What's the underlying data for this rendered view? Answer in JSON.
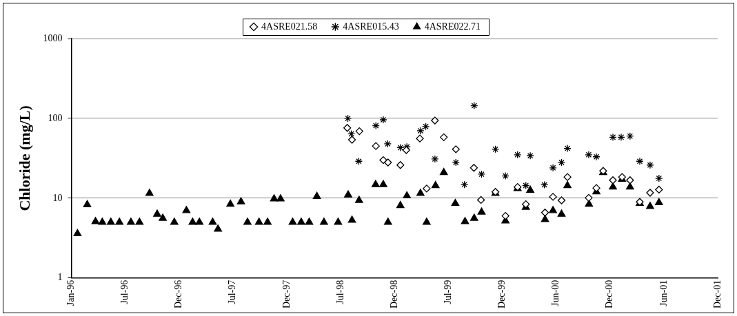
{
  "chart_data": {
    "type": "scatter",
    "ylabel": "Chloride (mg/L)",
    "log": "y",
    "grid": "y",
    "legend": "top",
    "ylim": [
      1,
      1000
    ],
    "yticks": [
      1,
      10,
      100,
      1000
    ],
    "xlim": [
      "1996-01-01",
      "2001-12-30"
    ],
    "xticks": [
      {
        "value": "1996-01-01",
        "label": "Jan-96"
      },
      {
        "value": "1996-07-01T12:00",
        "label": "Jul-96"
      },
      {
        "value": "1996-12-31",
        "label": "Dec-96"
      },
      {
        "value": "1997-07-01T12:00",
        "label": "Jul-97"
      },
      {
        "value": "1997-12-31",
        "label": "Dec-97"
      },
      {
        "value": "1998-07-01T12:00",
        "label": "Jul-98"
      },
      {
        "value": "1998-12-31",
        "label": "Dec-98"
      },
      {
        "value": "1999-07-01T12:00",
        "label": "Jul-99"
      },
      {
        "value": "1999-12-31",
        "label": "Dec-99"
      },
      {
        "value": "2000-06-30T12:00",
        "label": "Jun-00"
      },
      {
        "value": "2000-12-30",
        "label": "Dec-00"
      },
      {
        "value": "2001-06-30T12:00",
        "label": "Jun-01"
      },
      {
        "value": "2001-12-30",
        "label": "Dec-01"
      }
    ],
    "series": [
      {
        "name": "4ASRE021.58",
        "color": "#000000",
        "marker": "diamond",
        "x": [
          "1998-07-24",
          "1998-08-09",
          "1998-09-03",
          "1998-10-29",
          "1998-11-23",
          "1998-12-09",
          "1999-01-20",
          "1999-02-09",
          "1999-03-27",
          "1999-04-19",
          "1999-05-17",
          "1999-06-16",
          "1999-07-27",
          "1999-09-26",
          "1999-10-20",
          "1999-12-08",
          "2000-01-11",
          "2000-02-21",
          "2000-03-20",
          "2000-05-24",
          "2000-06-20",
          "2000-07-19",
          "2000-08-08",
          "2000-10-19",
          "2000-11-14",
          "2000-12-07",
          "2001-01-09",
          "2001-02-09",
          "2001-03-08",
          "2001-04-10",
          "2001-05-15",
          "2001-06-14"
        ],
        "values": [
          76,
          54,
          69,
          45,
          30,
          28,
          26,
          40,
          56,
          13.2,
          94,
          58,
          41,
          24,
          9.5,
          12,
          6,
          13.8,
          8.4,
          6.6,
          10.4,
          9.4,
          18.4,
          10.1,
          13.4,
          22,
          16.8,
          18.4,
          16.8,
          9,
          11.7,
          12.8
        ]
      },
      {
        "name": "4ASRE015.43",
        "color": "#000000",
        "marker": "cross",
        "x": [
          "1998-07-26",
          "1998-08-07",
          "1998-09-01",
          "1998-10-29",
          "1998-11-23",
          "1998-12-08",
          "1999-01-20",
          "1999-02-11",
          "1999-03-29",
          "1999-04-16",
          "1999-05-17",
          "1999-07-27",
          "1999-08-25",
          "1999-09-27",
          "1999-10-22",
          "1999-12-08",
          "2000-01-11",
          "2000-02-21",
          "2000-03-20",
          "2000-04-04",
          "2000-05-22",
          "2000-06-20",
          "2000-07-19",
          "2000-08-08",
          "2000-10-19",
          "2000-11-14",
          "2001-01-09",
          "2001-02-06",
          "2001-03-08",
          "2001-04-10",
          "2001-05-15",
          "2001-06-14"
        ],
        "values": [
          100,
          64,
          29,
          81,
          96,
          48,
          43,
          44,
          70,
          79,
          31,
          28,
          14.8,
          144,
          20,
          41,
          19,
          35,
          14.4,
          34,
          14.7,
          24,
          28,
          42,
          35,
          33,
          58,
          58,
          60,
          29,
          26,
          17.7
        ]
      },
      {
        "name": "4ASRE022.71",
        "color": "#000000",
        "marker": "triangle",
        "x": [
          "1996-01-22",
          "1996-02-24",
          "1996-03-23",
          "1996-04-15",
          "1996-05-14",
          "1996-06-12",
          "1996-07-21",
          "1996-08-19",
          "1996-09-22",
          "1996-10-18",
          "1996-11-06",
          "1996-12-15",
          "1997-01-25",
          "1997-02-15",
          "1997-03-10",
          "1997-04-24",
          "1997-05-12",
          "1997-06-23",
          "1997-07-29",
          "1997-08-20",
          "1997-09-28",
          "1997-10-27",
          "1997-11-18",
          "1997-12-10",
          "1998-01-20",
          "1998-02-18",
          "1998-03-17",
          "1998-04-12",
          "1998-05-06",
          "1998-06-23",
          "1998-07-27",
          "1998-08-09",
          "1998-09-02",
          "1998-10-28",
          "1998-11-23",
          "1998-12-09",
          "1999-01-20",
          "1999-02-11",
          "1999-03-29",
          "1999-04-19",
          "1999-05-19",
          "1999-06-16",
          "1999-07-25",
          "1999-08-27",
          "1999-09-27",
          "1999-10-22",
          "1999-12-08",
          "2000-01-11",
          "2000-02-21",
          "2000-03-20",
          "2000-04-04",
          "2000-05-24",
          "2000-06-20",
          "2000-07-19",
          "2000-08-08",
          "2000-10-20",
          "2000-11-14",
          "2000-12-07",
          "2001-01-09",
          "2001-02-09",
          "2001-03-08",
          "2001-04-10",
          "2001-05-15",
          "2001-06-14"
        ],
        "values": [
          3.6,
          8.3,
          5.1,
          5,
          5,
          5,
          5,
          5,
          11.5,
          6.3,
          5.6,
          5,
          7,
          5,
          5,
          5,
          4.1,
          8.4,
          9,
          5,
          5,
          5,
          9.8,
          9.8,
          5,
          5,
          5,
          10.5,
          5,
          5,
          11,
          5.3,
          9.4,
          14.8,
          14.8,
          5,
          8.1,
          10.7,
          11.5,
          5,
          14.4,
          21,
          8.6,
          5.1,
          5.6,
          6.7,
          11.5,
          5.2,
          13.2,
          7.7,
          12.6,
          5.4,
          7,
          6.3,
          14.4,
          8.4,
          12,
          21,
          13.8,
          17.3,
          13.8,
          8.6,
          7.9,
          8.8
        ]
      }
    ]
  }
}
